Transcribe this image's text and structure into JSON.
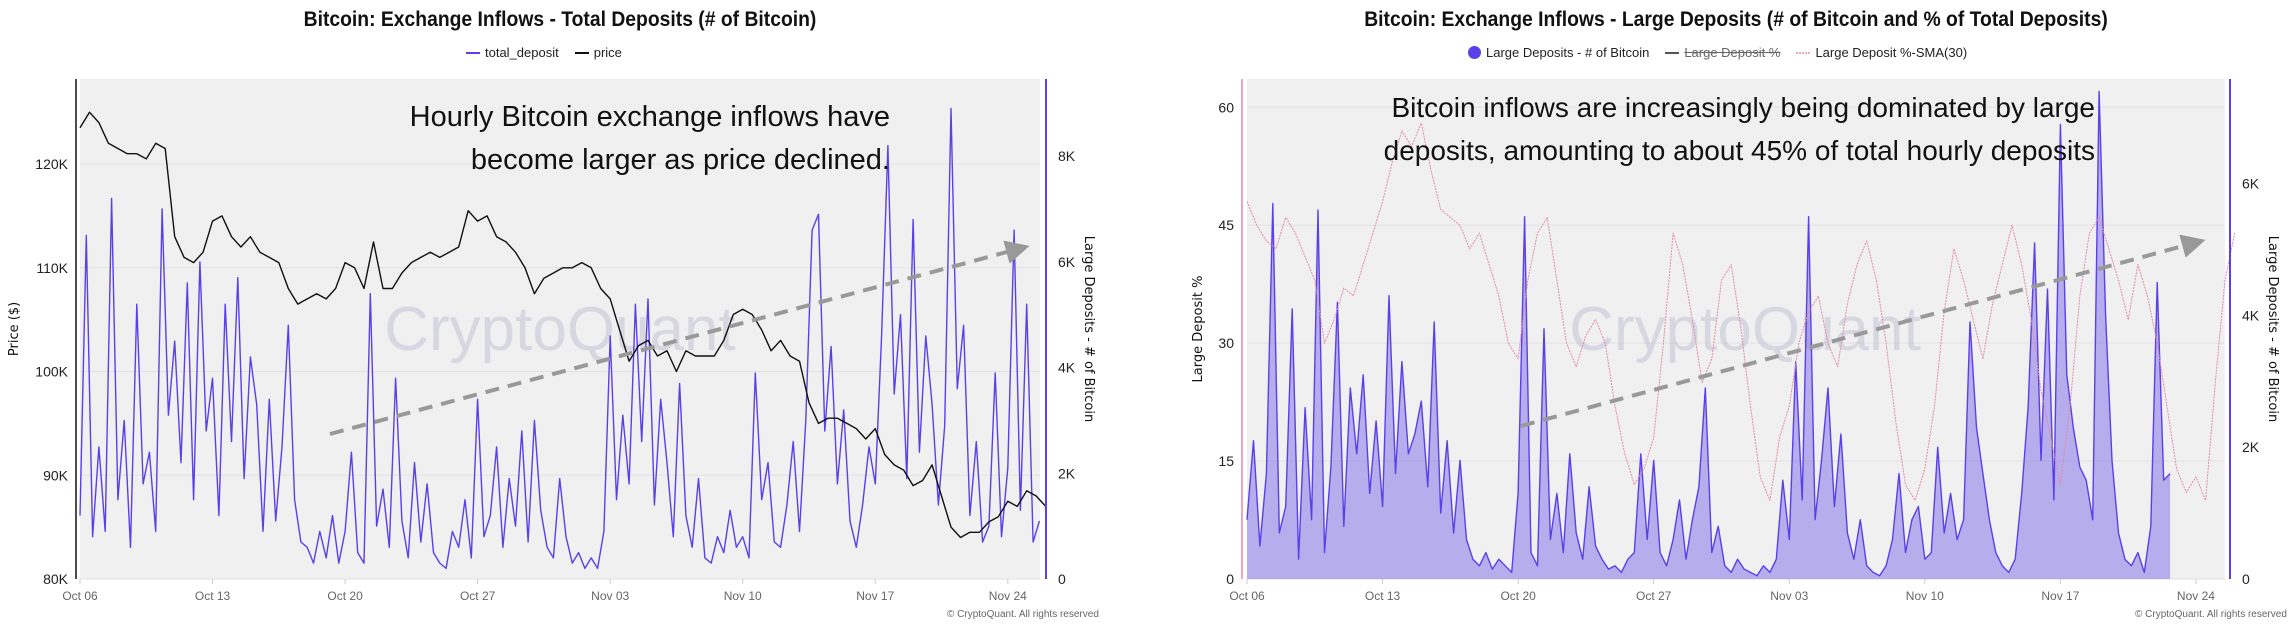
{
  "charts": [
    {
      "title": "Bitcoin: Exchange Inflows - Total Deposits (# of Bitcoin)",
      "legend": [
        {
          "label": "total_deposit",
          "color": "#5b3fe8"
        },
        {
          "label": "price",
          "color": "#111111"
        }
      ],
      "annotation": [
        "Hourly Bitcoin exchange inflows have",
        "become larger as price declined."
      ],
      "watermark": "CryptoQuant",
      "footer": "© CryptoQuant. All rights reserved"
    },
    {
      "title": "Bitcoin: Exchange Inflows - Large Deposits (# of Bitcoin and % of Total Deposits)",
      "legend": [
        {
          "label": "Large Deposits - # of Bitcoin",
          "color": "#5b3fe8"
        },
        {
          "label": "Large Deposit %",
          "color": "#555555"
        },
        {
          "label": "Large Deposit %-SMA(30)",
          "color": "#f0a8c0"
        }
      ],
      "annotation": [
        "Bitcoin inflows are increasingly being dominated by large",
        "deposits, amounting to about 45% of total hourly deposits"
      ],
      "watermark": "CryptoQuant",
      "footer": "© CryptoQuant. All rights reserved"
    }
  ],
  "chart_data": [
    {
      "type": "line",
      "title": "Bitcoin: Exchange Inflows - Total Deposits (# of Bitcoin)",
      "x_start": "Oct 06",
      "x_tick_labels": [
        "Oct 06",
        "Oct 13",
        "Oct 20",
        "Oct 27",
        "Nov 03",
        "Nov 10",
        "Nov 17",
        "Nov 24"
      ],
      "x_tick_days": [
        0,
        7,
        14,
        21,
        28,
        35,
        42,
        49
      ],
      "x_range_days": [
        0,
        50.7
      ],
      "y_left": {
        "label": "Price ($)",
        "range": [
          80000,
          128200
        ],
        "ticks": [
          80000,
          90000,
          100000,
          110000,
          120000
        ],
        "tick_labels": [
          "80K",
          "90K",
          "100K",
          "110K",
          "120K"
        ]
      },
      "y_right": {
        "label": "Large Deposits - # of Bitcoin",
        "range": [
          0,
          9460
        ],
        "ticks": [
          0,
          2000,
          4000,
          6000,
          8000
        ],
        "tick_labels": [
          "0",
          "2K",
          "4K",
          "6K",
          "8K"
        ]
      },
      "grid": true,
      "legend_position": "top-center",
      "series": [
        {
          "name": "total_deposit",
          "axis": "right",
          "step_hours": 8,
          "color": "#5b3fe8",
          "values": [
            1200,
            6500,
            800,
            2500,
            900,
            7200,
            1500,
            3000,
            600,
            5200,
            1800,
            2400,
            900,
            7000,
            3100,
            4500,
            2200,
            5600,
            1500,
            6000,
            2800,
            3800,
            1200,
            5200,
            2600,
            5700,
            1900,
            4200,
            3300,
            900,
            3400,
            1100,
            2500,
            4800,
            1500,
            700,
            600,
            300,
            900,
            400,
            1200,
            300,
            900,
            2400,
            500,
            300,
            5400,
            1000,
            1700,
            600,
            3800,
            1100,
            400,
            2200,
            700,
            1800,
            500,
            300,
            200,
            900,
            600,
            1500,
            400,
            3400,
            800,
            1200,
            2500,
            600,
            1900,
            1000,
            2800,
            700,
            3000,
            1300,
            600,
            400,
            1900,
            800,
            300,
            500,
            200,
            400,
            200,
            900,
            4600,
            1500,
            3100,
            1800,
            5200,
            2600,
            5300,
            1400,
            3400,
            2200,
            800,
            3700,
            1200,
            600,
            1900,
            400,
            300,
            800,
            500,
            1300,
            600,
            800,
            400,
            3900,
            1500,
            2200,
            700,
            600,
            1400,
            2600,
            900,
            3000,
            6600,
            6900,
            2800,
            4400,
            1800,
            3200,
            1100,
            600,
            1400,
            2500,
            1800,
            4600,
            8200,
            3500,
            5000,
            1900,
            6800,
            2400,
            4600,
            3300,
            1400,
            2900,
            8900,
            3600,
            4800,
            1200,
            2600,
            700,
            1000,
            3900,
            800,
            2100,
            6600,
            1300,
            5200,
            700,
            1100
          ]
        },
        {
          "name": "price",
          "axis": "left",
          "step_hours": 12,
          "color": "#111111",
          "values": [
            123500,
            125000,
            124000,
            122000,
            121500,
            121000,
            121000,
            120500,
            122000,
            121500,
            113000,
            111000,
            110500,
            111500,
            114500,
            115000,
            113000,
            112000,
            113000,
            111500,
            111000,
            110500,
            108000,
            106500,
            107000,
            107500,
            107000,
            108000,
            110500,
            110000,
            108000,
            112500,
            108000,
            108000,
            109500,
            110500,
            111000,
            111500,
            111000,
            111500,
            112000,
            115500,
            114500,
            115000,
            113000,
            112500,
            111500,
            110000,
            107500,
            109000,
            109500,
            110000,
            110000,
            110500,
            110000,
            108000,
            107000,
            104000,
            101000,
            102500,
            103000,
            101500,
            102000,
            100000,
            102000,
            101500,
            101500,
            101500,
            103000,
            105500,
            106000,
            105500,
            104000,
            102000,
            103000,
            101500,
            101000,
            97000,
            95000,
            95500,
            95500,
            95000,
            94500,
            93500,
            94500,
            92000,
            91000,
            90500,
            89000,
            89500,
            91000,
            88000,
            85000,
            84000,
            84500,
            84500,
            85500,
            86000,
            87500,
            87000,
            88500,
            88000,
            87000
          ]
        }
      ],
      "annotations": [
        "Hourly Bitcoin exchange inflows have",
        "become larger as price declined."
      ]
    },
    {
      "type": "line",
      "title": "Bitcoin: Exchange Inflows - Large Deposits (# of Bitcoin and % of Total Deposits)",
      "x_start": "Oct 06",
      "x_tick_labels": [
        "Oct 06",
        "Oct 13",
        "Oct 20",
        "Oct 27",
        "Nov 03",
        "Nov 10",
        "Nov 17",
        "Nov 24"
      ],
      "x_tick_days": [
        0,
        7,
        14,
        21,
        28,
        35,
        42,
        49
      ],
      "x_range_days": [
        0,
        50.5
      ],
      "y_left": {
        "label": "Large Deposit %",
        "range": [
          0,
          63.6
        ],
        "ticks": [
          0,
          15,
          30,
          45,
          60
        ],
        "tick_labels": [
          "0",
          "15",
          "30",
          "45",
          "60"
        ]
      },
      "y_right": {
        "label": "Large Deposits - # of Bitcoin",
        "range": [
          0,
          7590
        ],
        "ticks": [
          0,
          2000,
          4000,
          6000
        ],
        "tick_labels": [
          "0",
          "2K",
          "4K",
          "6K"
        ]
      },
      "grid": true,
      "legend_position": "top-center",
      "series": [
        {
          "name": "Large Deposits - # of Bitcoin",
          "axis": "right",
          "step_hours": 8,
          "color": "#5b3fe8",
          "fill": true,
          "values": [
            900,
            2100,
            500,
            1600,
            5700,
            700,
            1100,
            4100,
            300,
            2600,
            900,
            5600,
            400,
            1700,
            4200,
            800,
            2900,
            1900,
            3100,
            1300,
            2400,
            1100,
            4300,
            1600,
            3300,
            1900,
            2200,
            2700,
            1400,
            3900,
            1000,
            2100,
            700,
            1800,
            600,
            300,
            200,
            400,
            150,
            300,
            200,
            100,
            1300,
            5500,
            400,
            200,
            3800,
            600,
            1300,
            400,
            1900,
            700,
            300,
            1400,
            500,
            300,
            150,
            200,
            100,
            300,
            400,
            1900,
            600,
            1800,
            400,
            200,
            600,
            1200,
            300,
            900,
            1400,
            2900,
            400,
            800,
            200,
            100,
            300,
            150,
            100,
            50,
            200,
            100,
            300,
            1500,
            600,
            3300,
            1200,
            5500,
            900,
            1800,
            2900,
            1100,
            2200,
            700,
            300,
            900,
            200,
            100,
            50,
            200,
            600,
            1600,
            400,
            900,
            1100,
            300,
            400,
            2000,
            700,
            1300,
            600,
            900,
            3900,
            2300,
            1600,
            900,
            400,
            200,
            100,
            300,
            1300,
            2600,
            5100,
            1800,
            4400,
            1200,
            6900,
            3100,
            2300,
            1700,
            1500,
            900,
            7400,
            4000,
            1800,
            700,
            300,
            200,
            400,
            100,
            800,
            4500,
            1500,
            1600
          ]
        },
        {
          "name": "Large Deposit %-SMA(30)",
          "axis": "left",
          "step_hours": 12,
          "color": "#e58aa8",
          "values": [
            48,
            45,
            43,
            42,
            46,
            44,
            41,
            38,
            30,
            33,
            37,
            36,
            40,
            44,
            48,
            53,
            57,
            55,
            58,
            52,
            47,
            46,
            45,
            42,
            44,
            40,
            36,
            30,
            28,
            38,
            44,
            46,
            38,
            30,
            27,
            31,
            33,
            30,
            22,
            16,
            12,
            14,
            18,
            30,
            44,
            40,
            33,
            25,
            28,
            38,
            40,
            32,
            22,
            13,
            10,
            18,
            22,
            30,
            34,
            36,
            30,
            27,
            35,
            40,
            43,
            38,
            30,
            20,
            12,
            10,
            14,
            22,
            34,
            42,
            38,
            33,
            28,
            35,
            40,
            45,
            40,
            33,
            24,
            18,
            12,
            22,
            36,
            44,
            46,
            42,
            38,
            33,
            40,
            36,
            30,
            22,
            14,
            11,
            13,
            10,
            25,
            38,
            44
          ]
        }
      ],
      "annotations": [
        "Bitcoin inflows are increasingly being dominated by large",
        "deposits, amounting to about 45% of total hourly deposits"
      ]
    }
  ]
}
